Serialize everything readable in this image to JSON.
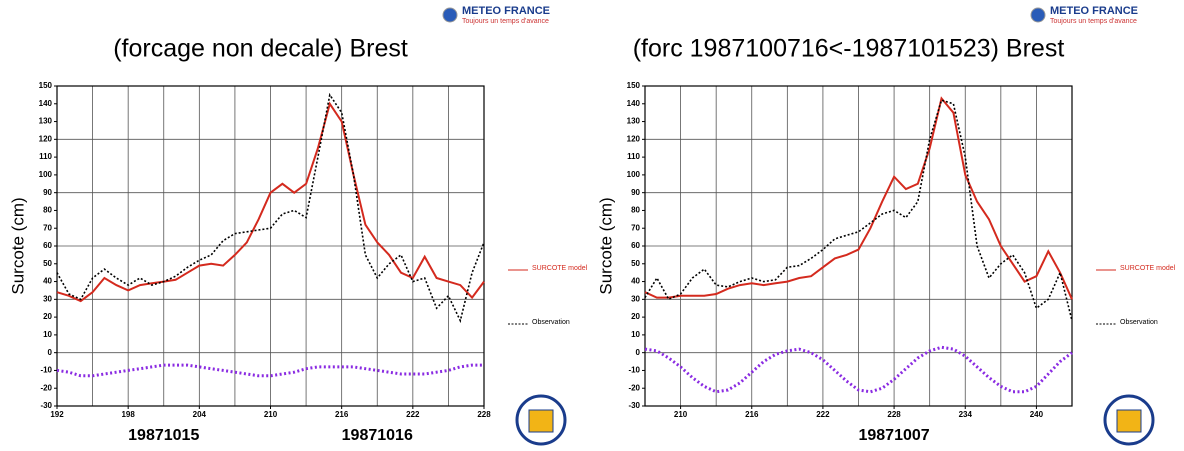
{
  "logos": {
    "name": "METEO FRANCE",
    "slogan": "Toujours un temps d'avance"
  },
  "chart_data": [
    {
      "type": "line",
      "title": "(forcage non decale) Brest",
      "y_label": "Surcote (cm)",
      "x": [
        192,
        193,
        194,
        195,
        196,
        197,
        198,
        199,
        200,
        201,
        202,
        203,
        204,
        205,
        206,
        207,
        208,
        209,
        210,
        211,
        212,
        213,
        214,
        215,
        216,
        217,
        218,
        219,
        220,
        221,
        222,
        223,
        224,
        225,
        226,
        227,
        228
      ],
      "series": [
        {
          "name": "SURCOTE model",
          "color": "#d42a1e",
          "style": "solid",
          "values": [
            34,
            32,
            29,
            34,
            42,
            38,
            35,
            38,
            39,
            40,
            41,
            45,
            49,
            50,
            49,
            55,
            62,
            75,
            90,
            95,
            90,
            95,
            115,
            140,
            130,
            100,
            72,
            62,
            55,
            45,
            42,
            54,
            42,
            40,
            38,
            31,
            40
          ]
        },
        {
          "name": "Observation",
          "color": "#000000",
          "style": "dotted",
          "values": [
            45,
            33,
            30,
            42,
            47,
            42,
            38,
            42,
            38,
            40,
            43,
            48,
            52,
            55,
            63,
            67,
            68,
            69,
            70,
            78,
            80,
            76,
            110,
            145,
            135,
            100,
            55,
            42,
            50,
            55,
            40,
            42,
            25,
            32,
            18,
            45,
            62
          ]
        },
        {
          "color": "#8a2be2",
          "style": "purple-dots",
          "values": [
            -10,
            -11,
            -13,
            -13,
            -12,
            -11,
            -10,
            -9,
            -8,
            -7,
            -7,
            -7,
            -8,
            -9,
            -10,
            -11,
            -12,
            -13,
            -13,
            -12,
            -11,
            -9,
            -8,
            -8,
            -8,
            -8,
            -9,
            -10,
            -11,
            -12,
            -12,
            -12,
            -11,
            -10,
            -8,
            -7,
            -7
          ]
        }
      ],
      "xlim": [
        192,
        228
      ],
      "xticks": [
        192,
        198,
        204,
        210,
        216,
        222,
        228
      ],
      "xgrid": [
        195,
        198,
        201,
        204,
        207,
        210,
        213,
        216,
        219,
        222,
        225
      ],
      "ylim": [
        -30,
        150
      ],
      "yticks": [
        -30,
        -20,
        -10,
        0,
        10,
        20,
        30,
        40,
        50,
        60,
        70,
        80,
        90,
        100,
        110,
        120,
        130,
        140,
        150
      ],
      "ygrid": [
        0,
        30,
        60,
        90,
        120
      ],
      "date_labels": [
        {
          "text": "19871015",
          "x": 201
        },
        {
          "text": "19871016",
          "x": 219
        }
      ]
    },
    {
      "type": "line",
      "title": "(forc 1987100716<-1987101523) Brest",
      "y_label": "Surcote (cm)",
      "x": [
        207,
        208,
        209,
        210,
        211,
        212,
        213,
        214,
        215,
        216,
        217,
        218,
        219,
        220,
        221,
        222,
        223,
        224,
        225,
        226,
        227,
        228,
        229,
        230,
        231,
        232,
        233,
        234,
        235,
        236,
        237,
        238,
        239,
        240,
        241,
        242,
        243
      ],
      "series": [
        {
          "name": "SURCOTE model",
          "color": "#d42a1e",
          "style": "solid",
          "values": [
            34,
            31,
            31,
            32,
            32,
            32,
            33,
            36,
            38,
            39,
            38,
            39,
            40,
            42,
            43,
            48,
            53,
            55,
            58,
            70,
            85,
            99,
            92,
            95,
            115,
            143,
            135,
            100,
            85,
            75,
            60,
            50,
            40,
            43,
            57,
            45,
            30
          ]
        },
        {
          "name": "Observation",
          "color": "#000000",
          "style": "dotted",
          "values": [
            31,
            42,
            30,
            33,
            42,
            47,
            38,
            37,
            40,
            42,
            40,
            41,
            48,
            49,
            53,
            58,
            64,
            66,
            68,
            73,
            78,
            80,
            76,
            85,
            120,
            142,
            140,
            110,
            60,
            42,
            50,
            55,
            45,
            25,
            30,
            45,
            18
          ]
        },
        {
          "color": "#8a2be2",
          "style": "purple-dots",
          "values": [
            2,
            1,
            -3,
            -8,
            -14,
            -19,
            -22,
            -21,
            -17,
            -11,
            -5,
            -1,
            1,
            2,
            0,
            -4,
            -10,
            -16,
            -21,
            -22,
            -20,
            -15,
            -9,
            -3,
            1,
            3,
            2,
            -2,
            -8,
            -14,
            -19,
            -22,
            -22,
            -19,
            -12,
            -5,
            0
          ]
        }
      ],
      "xlim": [
        207,
        243
      ],
      "xticks": [
        210,
        216,
        222,
        228,
        234,
        240
      ],
      "xgrid": [
        210,
        213,
        216,
        219,
        222,
        225,
        228,
        231,
        234,
        237,
        240
      ],
      "ylim": [
        -30,
        150
      ],
      "yticks": [
        -30,
        -20,
        -10,
        0,
        10,
        20,
        30,
        40,
        50,
        60,
        70,
        80,
        90,
        100,
        110,
        120,
        130,
        140,
        150
      ],
      "ygrid": [
        0,
        30,
        60,
        90,
        120
      ],
      "date_labels": [
        {
          "text": "19871007",
          "x": 228
        }
      ]
    }
  ]
}
